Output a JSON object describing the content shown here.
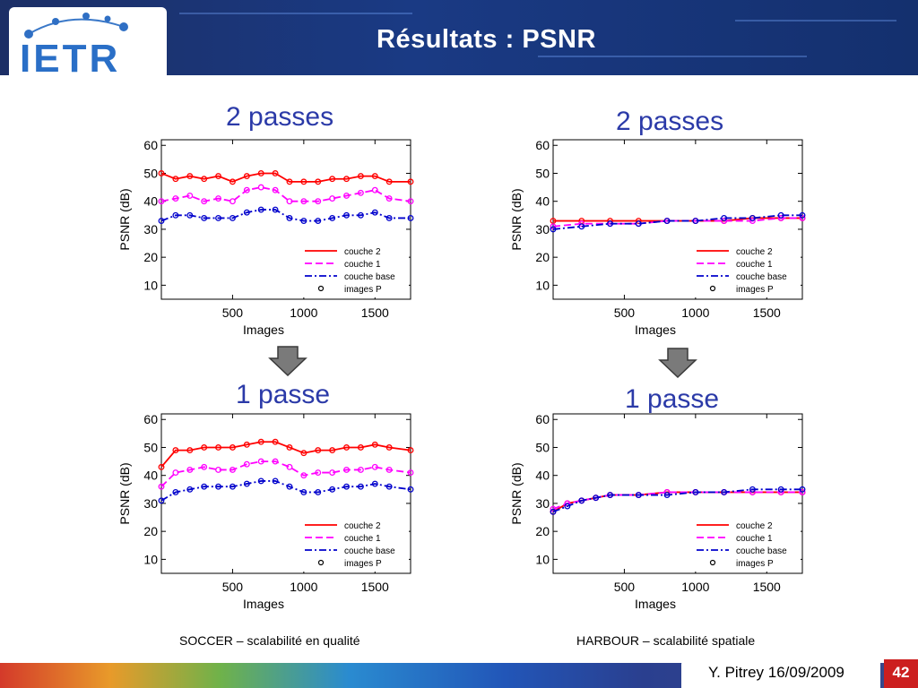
{
  "header": {
    "title": "Résultats : PSNR",
    "logo_text": "IETR"
  },
  "panels": [
    {
      "label": "2 passes"
    },
    {
      "label": "2 passes"
    },
    {
      "label": "1 passe"
    },
    {
      "label": "1 passe"
    }
  ],
  "captions": {
    "left": "SOCCER – scalabilité en qualité",
    "right": "HARBOUR – scalabilité spatiale"
  },
  "footer": {
    "author": "Y. Pitrey 16/09/2009",
    "page": "42"
  },
  "colors": {
    "couche2": "#ff0000",
    "couche1": "#ff00ff",
    "couche_base": "#0000cc",
    "pass_label": "#2b3aa8"
  },
  "chart_data": [
    {
      "type": "line",
      "xlabel": "Images",
      "ylabel": "PSNR (dB)",
      "xlim": [
        0,
        1750
      ],
      "ylim": [
        5,
        62
      ],
      "xticks": [
        500,
        1000,
        1500
      ],
      "yticks": [
        10,
        20,
        30,
        40,
        50,
        60
      ],
      "legend": [
        "couche 2",
        "couche 1",
        "couche base",
        "images P"
      ],
      "series": [
        {
          "name": "couche 2",
          "style": "solid",
          "x": [
            0,
            100,
            200,
            300,
            400,
            500,
            600,
            700,
            800,
            900,
            1000,
            1100,
            1200,
            1300,
            1400,
            1500,
            1600,
            1750
          ],
          "y": [
            50,
            48,
            49,
            48,
            49,
            47,
            49,
            50,
            50,
            47,
            47,
            47,
            48,
            48,
            49,
            49,
            47,
            47
          ]
        },
        {
          "name": "couche 1",
          "style": "dash",
          "x": [
            0,
            100,
            200,
            300,
            400,
            500,
            600,
            700,
            800,
            900,
            1000,
            1100,
            1200,
            1300,
            1400,
            1500,
            1600,
            1750
          ],
          "y": [
            40,
            41,
            42,
            40,
            41,
            40,
            44,
            45,
            44,
            40,
            40,
            40,
            41,
            42,
            43,
            44,
            41,
            40
          ]
        },
        {
          "name": "couche base",
          "style": "dashdot",
          "x": [
            0,
            100,
            200,
            300,
            400,
            500,
            600,
            700,
            800,
            900,
            1000,
            1100,
            1200,
            1300,
            1400,
            1500,
            1600,
            1750
          ],
          "y": [
            33,
            35,
            35,
            34,
            34,
            34,
            36,
            37,
            37,
            34,
            33,
            33,
            34,
            35,
            35,
            36,
            34,
            34
          ]
        }
      ]
    },
    {
      "type": "line",
      "xlabel": "Images",
      "ylabel": "PSNR (dB)",
      "xlim": [
        0,
        1750
      ],
      "ylim": [
        5,
        62
      ],
      "xticks": [
        500,
        1000,
        1500
      ],
      "yticks": [
        10,
        20,
        30,
        40,
        50,
        60
      ],
      "legend": [
        "couche 2",
        "couche 1",
        "couche base",
        "images P"
      ],
      "series": [
        {
          "name": "couche 2",
          "style": "solid",
          "x": [
            0,
            200,
            400,
            600,
            800,
            1000,
            1200,
            1400,
            1600,
            1750
          ],
          "y": [
            33,
            33,
            33,
            33,
            33,
            33,
            33,
            34,
            34,
            34
          ]
        },
        {
          "name": "couche 1",
          "style": "dash",
          "x": [
            0,
            200,
            400,
            600,
            800,
            1000,
            1200,
            1400,
            1600,
            1750
          ],
          "y": [
            31,
            32,
            32,
            32,
            33,
            33,
            33,
            33,
            34,
            34
          ]
        },
        {
          "name": "couche base",
          "style": "dashdot",
          "x": [
            0,
            200,
            400,
            600,
            800,
            1000,
            1200,
            1400,
            1600,
            1750
          ],
          "y": [
            30,
            31,
            32,
            32,
            33,
            33,
            34,
            34,
            35,
            35
          ]
        }
      ]
    },
    {
      "type": "line",
      "xlabel": "Images",
      "ylabel": "PSNR (dB)",
      "xlim": [
        0,
        1750
      ],
      "ylim": [
        5,
        62
      ],
      "xticks": [
        500,
        1000,
        1500
      ],
      "yticks": [
        10,
        20,
        30,
        40,
        50,
        60
      ],
      "legend": [
        "couche 2",
        "couche 1",
        "couche base",
        "images P"
      ],
      "series": [
        {
          "name": "couche 2",
          "style": "solid",
          "x": [
            0,
            100,
            200,
            300,
            400,
            500,
            600,
            700,
            800,
            900,
            1000,
            1100,
            1200,
            1300,
            1400,
            1500,
            1600,
            1750
          ],
          "y": [
            43,
            49,
            49,
            50,
            50,
            50,
            51,
            52,
            52,
            50,
            48,
            49,
            49,
            50,
            50,
            51,
            50,
            49
          ]
        },
        {
          "name": "couche 1",
          "style": "dash",
          "x": [
            0,
            100,
            200,
            300,
            400,
            500,
            600,
            700,
            800,
            900,
            1000,
            1100,
            1200,
            1300,
            1400,
            1500,
            1600,
            1750
          ],
          "y": [
            36,
            41,
            42,
            43,
            42,
            42,
            44,
            45,
            45,
            43,
            40,
            41,
            41,
            42,
            42,
            43,
            42,
            41
          ]
        },
        {
          "name": "couche base",
          "style": "dashdot",
          "x": [
            0,
            100,
            200,
            300,
            400,
            500,
            600,
            700,
            800,
            900,
            1000,
            1100,
            1200,
            1300,
            1400,
            1500,
            1600,
            1750
          ],
          "y": [
            31,
            34,
            35,
            36,
            36,
            36,
            37,
            38,
            38,
            36,
            34,
            34,
            35,
            36,
            36,
            37,
            36,
            35
          ]
        }
      ]
    },
    {
      "type": "line",
      "xlabel": "Images",
      "ylabel": "PSNR (dB)",
      "xlim": [
        0,
        1750
      ],
      "ylim": [
        5,
        62
      ],
      "xticks": [
        500,
        1000,
        1500
      ],
      "yticks": [
        10,
        20,
        30,
        40,
        50,
        60
      ],
      "legend": [
        "couche 2",
        "couche 1",
        "couche base",
        "images P"
      ],
      "series": [
        {
          "name": "couche 2",
          "style": "solid",
          "x": [
            0,
            100,
            200,
            300,
            400,
            600,
            800,
            1000,
            1200,
            1400,
            1600,
            1750
          ],
          "y": [
            27,
            30,
            31,
            32,
            33,
            33,
            34,
            34,
            34,
            34,
            34,
            34
          ]
        },
        {
          "name": "couche 1",
          "style": "dash",
          "x": [
            0,
            100,
            200,
            300,
            400,
            600,
            800,
            1000,
            1200,
            1400,
            1600,
            1750
          ],
          "y": [
            28,
            30,
            31,
            32,
            33,
            33,
            34,
            34,
            34,
            34,
            34,
            34
          ]
        },
        {
          "name": "couche base",
          "style": "dashdot",
          "x": [
            0,
            100,
            200,
            300,
            400,
            600,
            800,
            1000,
            1200,
            1400,
            1600,
            1750
          ],
          "y": [
            27,
            29,
            31,
            32,
            33,
            33,
            33,
            34,
            34,
            35,
            35,
            35
          ]
        }
      ]
    }
  ]
}
